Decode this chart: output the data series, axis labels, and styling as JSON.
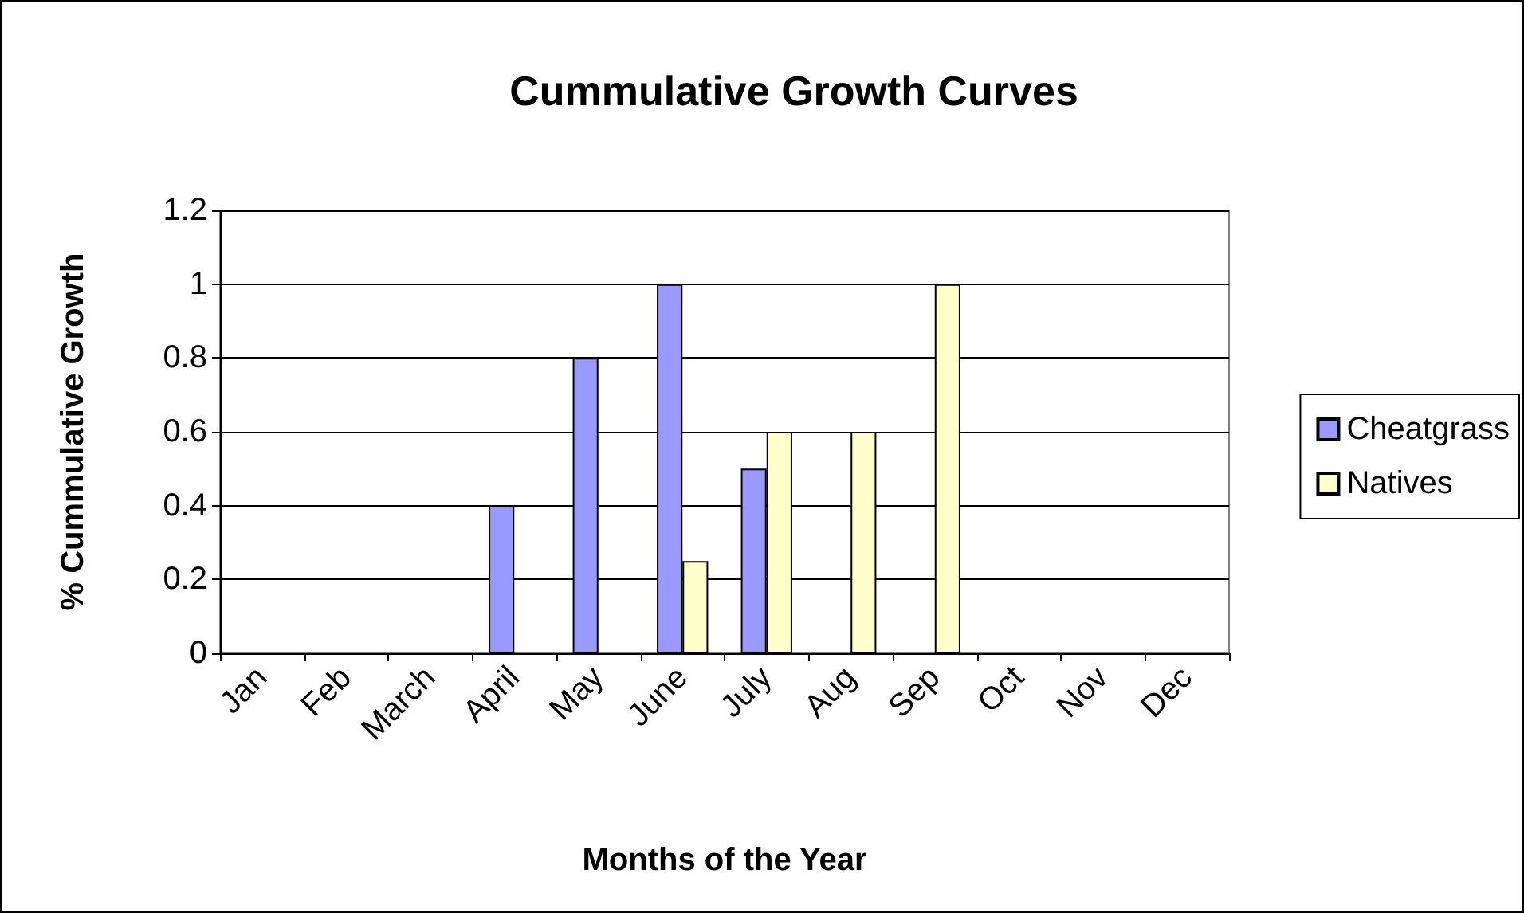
{
  "chart_data": {
    "type": "bar",
    "title": "Cummulative Growth Curves",
    "xlabel": "Months of the Year",
    "ylabel": "% Cummulative Growth",
    "categories": [
      "Jan",
      "Feb",
      "March",
      "April",
      "May",
      "June",
      "July",
      "Aug",
      "Sep",
      "Oct",
      "Nov",
      "Dec"
    ],
    "series": [
      {
        "name": "Cheatgrass",
        "color": "#9999ff",
        "values": [
          null,
          null,
          null,
          0.4,
          0.8,
          1,
          0.5,
          null,
          null,
          null,
          null,
          null
        ]
      },
      {
        "name": "Natives",
        "color": "#ffffcc",
        "values": [
          null,
          null,
          null,
          null,
          null,
          0.25,
          0.6,
          0.6,
          1,
          null,
          null,
          null
        ]
      }
    ],
    "ylim": [
      0,
      1.2
    ],
    "yticks": [
      0,
      0.2,
      0.4,
      0.6,
      0.8,
      1,
      1.2
    ],
    "grid": "y",
    "legend": "right"
  }
}
